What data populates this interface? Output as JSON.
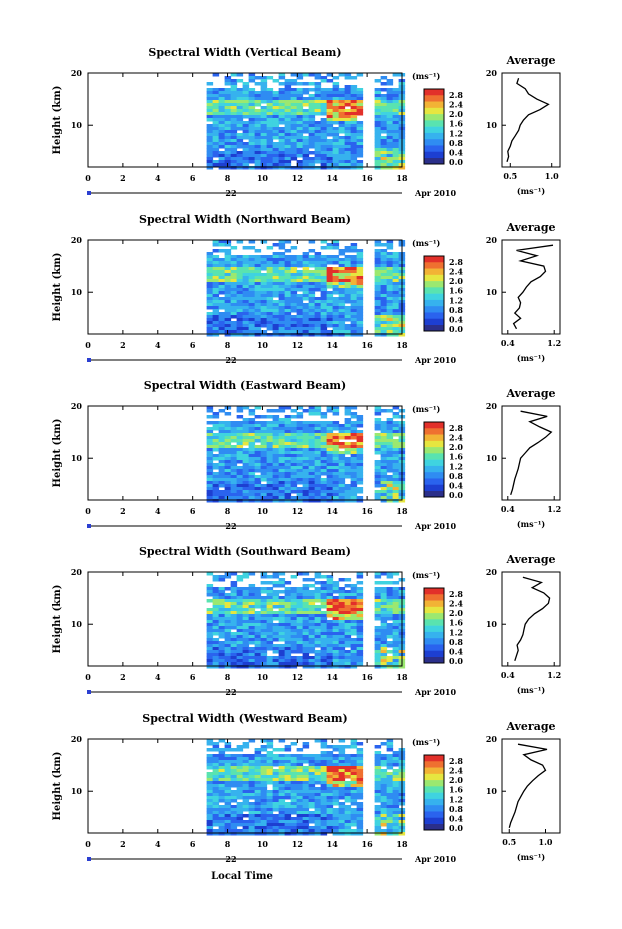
{
  "figure": {
    "footer_day": "22",
    "footer_date": "Apr 2010",
    "xlabel": "Local Time",
    "ylabel": "Height (km)",
    "colorbar_unit": "(ms⁻¹)",
    "avg_unit": "(ms⁻¹)",
    "avg_title": "Average"
  },
  "colors": {
    "scale": [
      "#2b2f8a",
      "#1d3fd1",
      "#2a63ee",
      "#2f8cf2",
      "#36b2ee",
      "#3fd3e0",
      "#59e3b0",
      "#9be870",
      "#e6e640",
      "#f2b335",
      "#ef7030",
      "#e2302a"
    ]
  },
  "chart_data": [
    {
      "type": "heatmap",
      "title": "Spectral Width (Vertical Beam)",
      "x_ticks": [
        "0",
        "2",
        "4",
        "6",
        "8",
        "10",
        "12",
        "14",
        "16",
        "18"
      ],
      "y_ticks": [
        "20",
        "10"
      ],
      "xlim": [
        0,
        18
      ],
      "ylim": [
        2,
        20
      ],
      "colorbar_ticks": [
        "2.8",
        "2.4",
        "2.0",
        "1.6",
        "1.2",
        "0.8",
        "0.4",
        "0.0"
      ],
      "data_start_hour": 6.8,
      "gap_hours": [
        16.0,
        16.2
      ],
      "avg_xlim": [
        0.4,
        1.1
      ],
      "avg_xticks": [
        "0.5",
        "1.0"
      ],
      "average_profile": {
        "height_km": [
          3,
          4,
          5,
          6,
          7,
          8,
          9,
          10,
          11,
          12,
          13,
          14,
          15,
          16,
          17,
          18,
          19
        ],
        "value": [
          0.46,
          0.48,
          0.47,
          0.5,
          0.52,
          0.56,
          0.6,
          0.62,
          0.66,
          0.72,
          0.86,
          0.96,
          0.82,
          0.72,
          0.68,
          0.58,
          0.6
        ]
      }
    },
    {
      "type": "heatmap",
      "title": "Spectral Width (Northward Beam)",
      "x_ticks": [
        "0",
        "2",
        "4",
        "6",
        "8",
        "10",
        "12",
        "14",
        "16",
        "18"
      ],
      "y_ticks": [
        "20",
        "10"
      ],
      "xlim": [
        0,
        18
      ],
      "ylim": [
        2,
        20
      ],
      "colorbar_ticks": [
        "2.8",
        "2.4",
        "2.0",
        "1.6",
        "1.2",
        "0.8",
        "0.4",
        "0.0"
      ],
      "data_start_hour": 6.8,
      "gap_hours": [
        16.0,
        16.2
      ],
      "avg_xlim": [
        0.3,
        1.3
      ],
      "avg_xticks": [
        "0.4",
        "1.2"
      ],
      "average_profile": {
        "height_km": [
          3,
          4,
          5,
          6,
          7,
          8,
          9,
          10,
          11,
          12,
          13,
          14,
          15,
          16,
          17,
          18,
          19
        ],
        "value": [
          0.55,
          0.5,
          0.62,
          0.52,
          0.6,
          0.62,
          0.58,
          0.66,
          0.72,
          0.8,
          0.96,
          1.05,
          1.02,
          0.62,
          0.9,
          0.55,
          1.18
        ]
      }
    },
    {
      "type": "heatmap",
      "title": "Spectral Width (Eastward Beam)",
      "x_ticks": [
        "0",
        "2",
        "4",
        "6",
        "8",
        "10",
        "12",
        "14",
        "16",
        "18"
      ],
      "y_ticks": [
        "20",
        "10"
      ],
      "xlim": [
        0,
        18
      ],
      "ylim": [
        2,
        20
      ],
      "colorbar_ticks": [
        "2.8",
        "2.4",
        "2.0",
        "1.6",
        "1.2",
        "0.8",
        "0.4",
        "0.0"
      ],
      "data_start_hour": 6.8,
      "gap_hours": [
        16.0,
        16.2
      ],
      "avg_xlim": [
        0.3,
        1.3
      ],
      "avg_xticks": [
        "0.4",
        "1.2"
      ],
      "average_profile": {
        "height_km": [
          3,
          4,
          5,
          6,
          7,
          8,
          9,
          10,
          11,
          12,
          13,
          14,
          15,
          16,
          17,
          18,
          19
        ],
        "value": [
          0.45,
          0.48,
          0.5,
          0.52,
          0.55,
          0.58,
          0.6,
          0.62,
          0.7,
          0.78,
          0.92,
          1.05,
          1.15,
          0.95,
          0.78,
          1.08,
          0.62
        ]
      }
    },
    {
      "type": "heatmap",
      "title": "Spectral Width (Southward Beam)",
      "x_ticks": [
        "0",
        "2",
        "4",
        "6",
        "8",
        "10",
        "12",
        "14",
        "16",
        "18"
      ],
      "y_ticks": [
        "20",
        "10"
      ],
      "xlim": [
        0,
        18
      ],
      "ylim": [
        2,
        20
      ],
      "colorbar_ticks": [
        "2.8",
        "2.4",
        "2.0",
        "1.6",
        "1.2",
        "0.8",
        "0.4",
        "0.0"
      ],
      "data_start_hour": 6.8,
      "gap_hours": [
        16.0,
        16.2
      ],
      "avg_xlim": [
        0.3,
        1.3
      ],
      "avg_xticks": [
        "0.4",
        "1.2"
      ],
      "average_profile": {
        "height_km": [
          3,
          4,
          5,
          6,
          7,
          8,
          9,
          10,
          11,
          12,
          13,
          14,
          15,
          16,
          17,
          18,
          19
        ],
        "value": [
          0.52,
          0.55,
          0.58,
          0.56,
          0.62,
          0.66,
          0.68,
          0.7,
          0.76,
          0.86,
          1.0,
          1.1,
          1.12,
          1.02,
          0.82,
          0.98,
          0.66
        ]
      }
    },
    {
      "type": "heatmap",
      "title": "Spectral Width (Westward Beam)",
      "x_ticks": [
        "0",
        "2",
        "4",
        "6",
        "8",
        "10",
        "12",
        "14",
        "16",
        "18"
      ],
      "y_ticks": [
        "20",
        "10"
      ],
      "xlim": [
        0,
        18
      ],
      "ylim": [
        2,
        20
      ],
      "colorbar_ticks": [
        "2.8",
        "2.4",
        "2.0",
        "1.6",
        "1.2",
        "0.8",
        "0.4",
        "0.0"
      ],
      "data_start_hour": 6.8,
      "gap_hours": [
        16.0,
        16.2
      ],
      "avg_xlim": [
        0.4,
        1.2
      ],
      "avg_xticks": [
        "0.5",
        "1.0"
      ],
      "average_profile": {
        "height_km": [
          3,
          4,
          5,
          6,
          7,
          8,
          9,
          10,
          11,
          12,
          13,
          14,
          15,
          16,
          17,
          18,
          19
        ],
        "value": [
          0.5,
          0.52,
          0.55,
          0.58,
          0.6,
          0.62,
          0.66,
          0.7,
          0.75,
          0.82,
          0.9,
          1.0,
          0.96,
          0.8,
          0.7,
          1.02,
          0.62
        ]
      }
    }
  ]
}
